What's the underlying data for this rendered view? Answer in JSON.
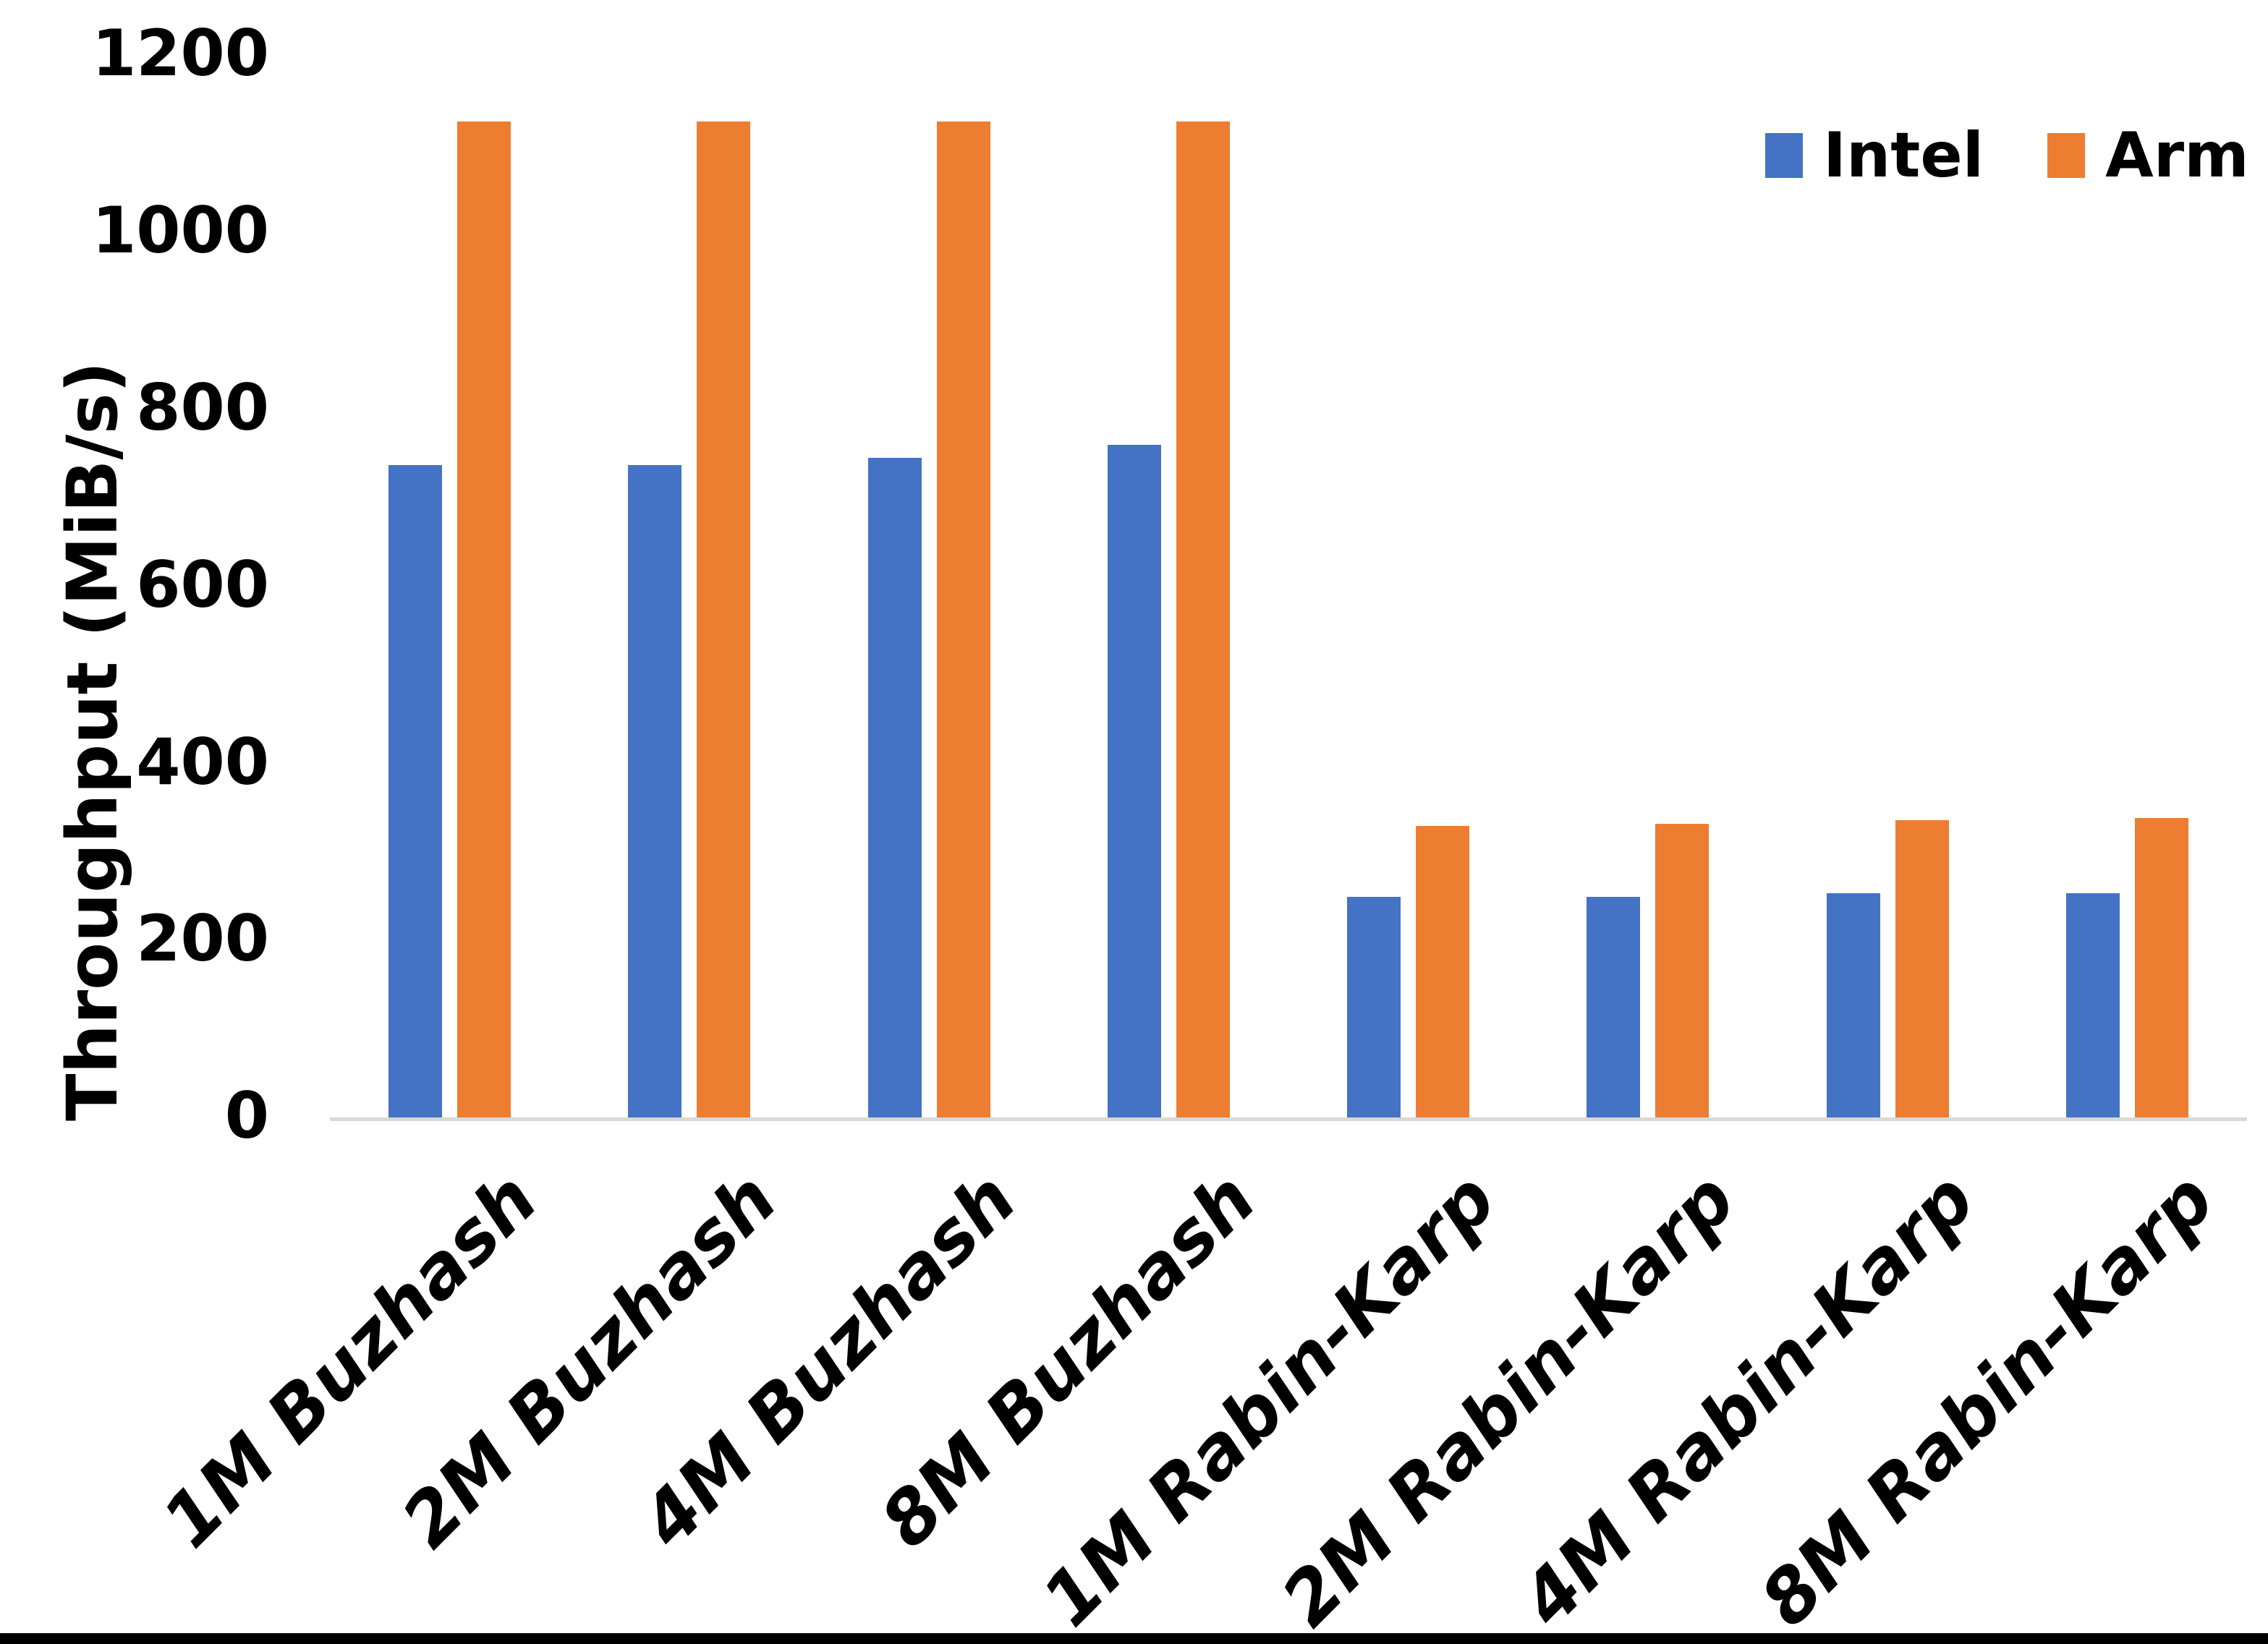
{
  "chart_data": {
    "type": "bar",
    "title": "",
    "xlabel": "",
    "ylabel": "Throughput (MiB/s)",
    "ylim": [
      0,
      1200
    ],
    "yticks": [
      0,
      200,
      400,
      600,
      800,
      1000,
      1200
    ],
    "grid": false,
    "legend_position": "top-right",
    "categories": [
      "1M Buzhash",
      "2M Buzhash",
      "4M Buzhash",
      "8M Buzhash",
      "1M Rabin-Karp",
      "2M Rabin-Karp",
      "4M Rabin-Karp",
      "8M Rabin-Karp"
    ],
    "series": [
      {
        "name": "Intel",
        "color": "#4472C4",
        "values": [
          737,
          737,
          745,
          760,
          249,
          249,
          253,
          253
        ]
      },
      {
        "name": "Arm",
        "color": "#ED7D31",
        "values": [
          1125,
          1125,
          1125,
          1125,
          329,
          332,
          336,
          338
        ]
      }
    ]
  },
  "colors": {
    "background": "#FFFFFF",
    "axis_line": "#D9D9D9",
    "text": "#000000",
    "bottom_bar": "#000000"
  }
}
